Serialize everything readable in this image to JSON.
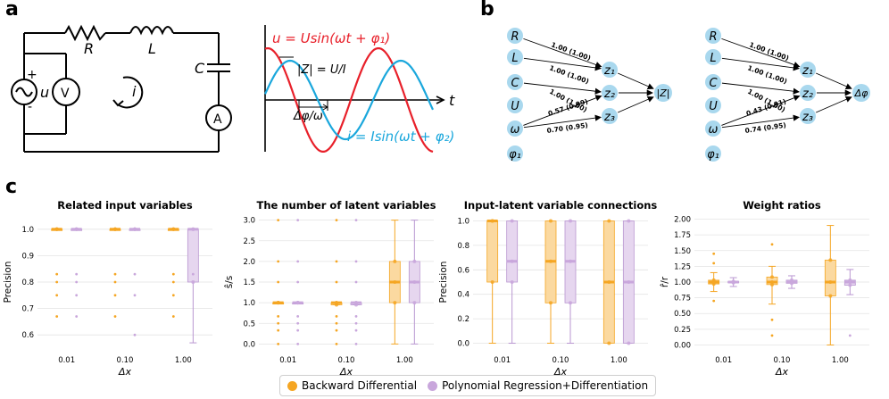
{
  "panels": {
    "a": "a",
    "b": "b",
    "c": "c"
  },
  "circuit": {
    "R": "R",
    "L": "L",
    "C": "C",
    "u": "u",
    "i": "i",
    "voltmeter": "V",
    "ammeter": "A",
    "plus": "+",
    "minus": "-"
  },
  "waveform": {
    "u_eq": "u = Usin(ωt + φ₁)",
    "i_eq": "i = Isin(ωt + φ₂)",
    "impedance": "|Z| = U/I",
    "phase": "Δφ/ω",
    "t": "t",
    "u_color": "#e8202a",
    "i_color": "#1aa7dc"
  },
  "graph_left": {
    "inputs": [
      "R",
      "L",
      "C",
      "U",
      "ω",
      "φ₁"
    ],
    "latents": [
      "z₁",
      "z₂",
      "z₃"
    ],
    "output": "|Z|",
    "edge_labels": [
      "1.00 (1.00)",
      "1.00 (1.00)",
      "1.00 (1.00)",
      "0.57 (0.99)",
      "0.70 (0.95)"
    ]
  },
  "graph_right": {
    "inputs": [
      "R",
      "L",
      "C",
      "U",
      "ω",
      "φ₁"
    ],
    "latents": [
      "z₁",
      "z₂",
      "z₃"
    ],
    "output": "Δφ",
    "edge_labels": [
      "1.00 (1.00)",
      "1.00 (1.00)",
      "1.00 (1.00)",
      "0.43 (0.91)",
      "0.74 (0.95)"
    ]
  },
  "chart_data": [
    {
      "type": "box",
      "title": "Related input variables",
      "xlabel": "Δx",
      "ylabel": "Precision",
      "categories": [
        "0.01",
        "0.10",
        "1.00"
      ],
      "ylim": [
        0.55,
        1.05
      ],
      "yticks": [
        "0.6",
        "0.7",
        "0.8",
        "0.9",
        "1.0"
      ],
      "series": [
        {
          "name": "Backward Differential",
          "boxes": [
            [
              1.0,
              1.0,
              1.0,
              1.0,
              1.0
            ],
            [
              1.0,
              1.0,
              1.0,
              1.0,
              1.0
            ],
            [
              1.0,
              1.0,
              1.0,
              1.0,
              1.0
            ]
          ],
          "outliers": [
            [
              0.83,
              0.8,
              0.75,
              0.67
            ],
            [
              0.83,
              0.8,
              0.75,
              0.67
            ],
            [
              0.83,
              0.8,
              0.75,
              0.67
            ]
          ]
        },
        {
          "name": "Polynomial Regression+Differentiation",
          "boxes": [
            [
              1.0,
              1.0,
              1.0,
              1.0,
              1.0
            ],
            [
              1.0,
              1.0,
              1.0,
              1.0,
              1.0
            ],
            [
              0.57,
              0.8,
              1.0,
              1.0,
              1.0
            ]
          ],
          "outliers": [
            [
              0.83,
              0.8,
              0.75,
              0.67
            ],
            [
              0.83,
              0.75,
              0.6
            ],
            [
              0.83
            ]
          ]
        }
      ]
    },
    {
      "type": "box",
      "title": "The number of latent variables",
      "xlabel": "Δx",
      "ylabel": "ŝ/s",
      "categories": [
        "0.01",
        "0.10",
        "1.00"
      ],
      "ylim": [
        -0.1,
        3.1
      ],
      "yticks": [
        "0.0",
        "0.5",
        "1.0",
        "1.5",
        "2.0",
        "2.5",
        "3.0"
      ],
      "series": [
        {
          "name": "Backward Differential",
          "boxes": [
            [
              1.0,
              1.0,
              1.0,
              1.0,
              1.0
            ],
            [
              0.95,
              0.95,
              1.0,
              1.0,
              1.0
            ],
            [
              0.0,
              1.0,
              1.5,
              2.0,
              3.0
            ]
          ],
          "outliers": [
            [
              3.0,
              2.0,
              1.5,
              0.67,
              0.5,
              0.33,
              0.0
            ],
            [
              3.0,
              2.0,
              1.5,
              0.67,
              0.5,
              0.33,
              0.0
            ],
            []
          ]
        },
        {
          "name": "Polynomial Regression+Differentiation",
          "boxes": [
            [
              1.0,
              1.0,
              1.0,
              1.0,
              1.0
            ],
            [
              0.95,
              0.95,
              1.0,
              1.0,
              1.0
            ],
            [
              0.0,
              1.0,
              1.5,
              2.0,
              3.0
            ]
          ],
          "outliers": [
            [
              3.0,
              2.0,
              1.5,
              0.67,
              0.5,
              0.33,
              0.0
            ],
            [
              3.0,
              2.0,
              1.5,
              0.67,
              0.5,
              0.33,
              0.0
            ],
            []
          ]
        }
      ]
    },
    {
      "type": "box",
      "title": "Input-latent variable connections",
      "xlabel": "Δx",
      "ylabel": "Precision",
      "categories": [
        "0.01",
        "0.10",
        "1.00"
      ],
      "ylim": [
        -0.04,
        1.04
      ],
      "yticks": [
        "0.0",
        "0.2",
        "0.4",
        "0.6",
        "0.8",
        "1.0"
      ],
      "series": [
        {
          "name": "Backward Differential",
          "boxes": [
            [
              0.0,
              0.5,
              1.0,
              1.0,
              1.0
            ],
            [
              0.0,
              0.33,
              0.67,
              1.0,
              1.0
            ],
            [
              0.0,
              0.0,
              0.5,
              1.0,
              1.0
            ]
          ],
          "outliers": [
            [],
            [],
            []
          ]
        },
        {
          "name": "Polynomial Regression+Differentiation",
          "boxes": [
            [
              0.0,
              0.5,
              0.67,
              1.0,
              1.0
            ],
            [
              0.0,
              0.33,
              0.67,
              1.0,
              1.0
            ],
            [
              0.0,
              0.0,
              0.5,
              1.0,
              1.0
            ]
          ],
          "outliers": [
            [],
            [],
            []
          ]
        }
      ]
    },
    {
      "type": "box",
      "title": "Weight ratios",
      "xlabel": "Δx",
      "ylabel": "r̂/r",
      "categories": [
        "0.01",
        "0.10",
        "1.00"
      ],
      "ylim": [
        -0.05,
        2.05
      ],
      "yticks": [
        "0.00",
        "0.25",
        "0.50",
        "0.75",
        "1.00",
        "1.25",
        "1.50",
        "1.75",
        "2.00"
      ],
      "series": [
        {
          "name": "Backward Differential",
          "boxes": [
            [
              0.85,
              0.97,
              1.0,
              1.03,
              1.15
            ],
            [
              0.65,
              0.96,
              1.0,
              1.08,
              1.25
            ],
            [
              0.0,
              0.78,
              1.0,
              1.35,
              1.9
            ]
          ],
          "outliers": [
            [
              1.45,
              1.3,
              0.7
            ],
            [
              1.6,
              0.4,
              0.15
            ],
            []
          ]
        },
        {
          "name": "Polynomial Regression+Differentiation",
          "boxes": [
            [
              0.93,
              0.99,
              1.0,
              1.01,
              1.07
            ],
            [
              0.9,
              0.98,
              1.0,
              1.03,
              1.1
            ],
            [
              0.8,
              0.95,
              1.0,
              1.03,
              1.2
            ]
          ],
          "outliers": [
            [],
            [],
            [
              0.15
            ]
          ]
        }
      ]
    }
  ],
  "legend": {
    "items": [
      "Backward Differential",
      "Polynomial Regression+Differentiation"
    ],
    "colors": [
      "#f5a623",
      "#c9a7dc"
    ]
  }
}
